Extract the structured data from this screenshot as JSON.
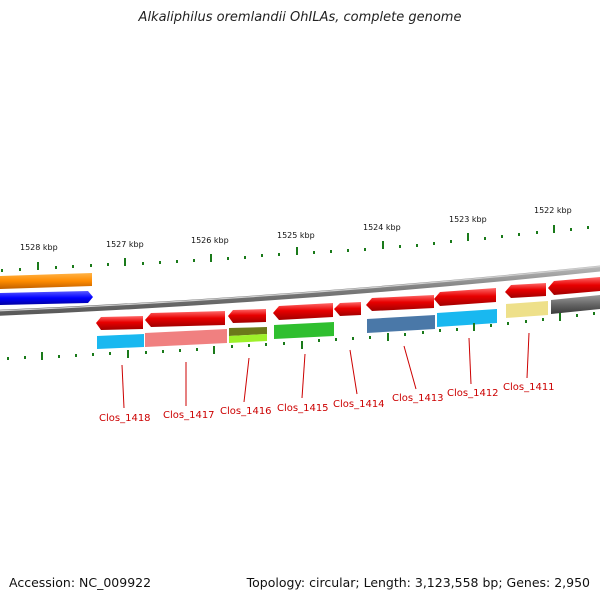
{
  "title": "Alkaliphilus oremlandii OhILAs, complete genome",
  "footer": {
    "accession": "Accession: NC_009922",
    "topology": "Topology: circular; Length: 3,123,558 bp; Genes: 2,950"
  },
  "scale_labels": [
    "1528 kbp",
    "1527 kbp",
    "1526 kbp",
    "1525 kbp",
    "1524 kbp",
    "1523 kbp",
    "1522 kbp"
  ],
  "gene_labels": [
    "Clos_1418",
    "Clos_1417",
    "Clos_1416",
    "Clos_1415",
    "Clos_1414",
    "Clos_1413",
    "Clos_1412",
    "Clos_1411"
  ],
  "colors": {
    "tick": "#1a7a1a",
    "backbone": "#777777",
    "arrow_red": "#e00000",
    "label_red": "#cc0000"
  },
  "genes": [
    {
      "color": "#19b8f0"
    },
    {
      "color": "#f08080"
    },
    {
      "color": "#8db02a"
    },
    {
      "color": "#2fbf2f"
    },
    {
      "color": null
    },
    {
      "color": "#4a78a8"
    },
    {
      "color": "#19b8f0"
    },
    {
      "color": "#eee08a"
    }
  ]
}
